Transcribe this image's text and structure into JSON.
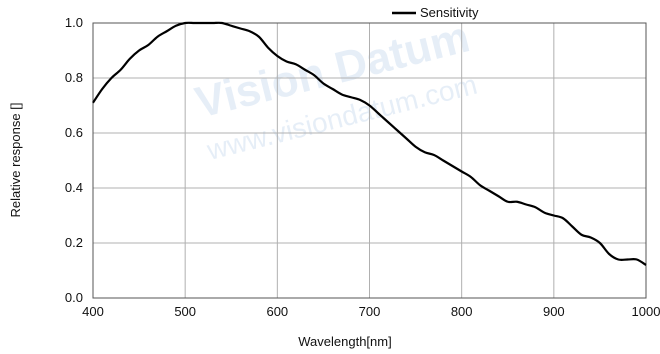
{
  "watermark": {
    "brand": "Vision Datum",
    "url": "www.visiondatum.com"
  },
  "chart_data": {
    "type": "line",
    "title": "",
    "xlabel": "Wavelength[nm]",
    "ylabel": "Relative response []",
    "xlim": [
      400,
      1000
    ],
    "ylim": [
      0.0,
      1.0
    ],
    "xticks": [
      "400",
      "500",
      "600",
      "700",
      "800",
      "900",
      "1000"
    ],
    "yticks": [
      "0.0",
      "0.2",
      "0.4",
      "0.6",
      "0.8",
      "1.0"
    ],
    "grid": true,
    "legend": "top-right",
    "series": [
      {
        "name": "Sensitivity",
        "color": "#000000",
        "x": [
          400,
          410,
          420,
          430,
          440,
          450,
          460,
          470,
          480,
          490,
          500,
          510,
          520,
          530,
          540,
          550,
          560,
          570,
          580,
          590,
          600,
          610,
          620,
          630,
          640,
          650,
          660,
          670,
          680,
          690,
          700,
          710,
          720,
          730,
          740,
          750,
          760,
          770,
          780,
          790,
          800,
          810,
          820,
          830,
          840,
          850,
          860,
          870,
          880,
          890,
          900,
          910,
          920,
          930,
          940,
          950,
          960,
          970,
          980,
          990,
          1000
        ],
        "y": [
          0.71,
          0.76,
          0.8,
          0.83,
          0.87,
          0.9,
          0.92,
          0.95,
          0.97,
          0.99,
          1.0,
          1.0,
          1.0,
          1.0,
          1.0,
          0.99,
          0.98,
          0.97,
          0.95,
          0.91,
          0.88,
          0.86,
          0.85,
          0.83,
          0.81,
          0.78,
          0.76,
          0.74,
          0.73,
          0.72,
          0.7,
          0.67,
          0.64,
          0.61,
          0.58,
          0.55,
          0.53,
          0.52,
          0.5,
          0.48,
          0.46,
          0.44,
          0.41,
          0.39,
          0.37,
          0.35,
          0.35,
          0.34,
          0.33,
          0.31,
          0.3,
          0.29,
          0.26,
          0.23,
          0.22,
          0.2,
          0.16,
          0.14,
          0.14,
          0.14,
          0.12
        ]
      }
    ]
  }
}
